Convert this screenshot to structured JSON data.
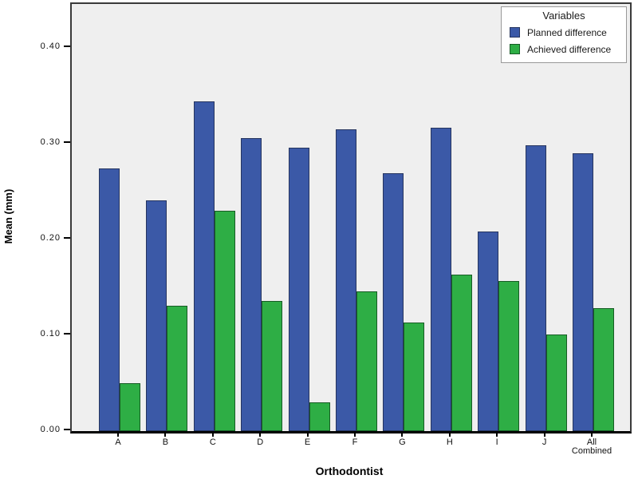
{
  "figure": {
    "background": "#ffffff",
    "plot_background": "#efefef"
  },
  "chart_data": {
    "type": "bar",
    "title": "",
    "xlabel": "Orthodontist",
    "ylabel": "Mean (mm)",
    "categories": [
      "A",
      "B",
      "C",
      "D",
      "E",
      "F",
      "G",
      "H",
      "I",
      "J",
      "All\nCombined"
    ],
    "series": [
      {
        "name": "Planned difference",
        "color": "#3b59a7",
        "border": "#26355f",
        "values": [
          0.274,
          0.241,
          0.344,
          0.306,
          0.296,
          0.315,
          0.269,
          0.317,
          0.208,
          0.298,
          0.29
        ]
      },
      {
        "name": "Achieved difference",
        "color": "#2eae45",
        "border": "#175c25",
        "values": [
          0.05,
          0.131,
          0.23,
          0.136,
          0.03,
          0.146,
          0.113,
          0.163,
          0.157,
          0.101,
          0.128
        ]
      }
    ],
    "ylim": [
      0,
      0.4458
    ],
    "yticks": [
      0.0,
      0.1,
      0.2,
      0.3,
      0.4
    ],
    "ytick_labels": [
      "0.00",
      "0.10",
      "0.20",
      "0.30",
      "0.40"
    ],
    "grid": false,
    "legend": {
      "title": "Variables",
      "position": "top-right"
    }
  }
}
